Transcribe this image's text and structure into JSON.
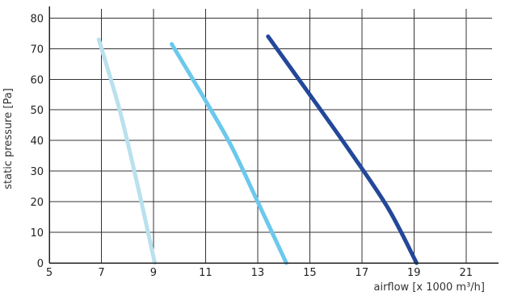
{
  "chart_data": {
    "type": "line",
    "title": "",
    "xlabel": "airflow [x 1000 m³/h]",
    "ylabel": "static pressure [Pa]",
    "xlim": [
      5,
      22
    ],
    "ylim": [
      0,
      83
    ],
    "xticks": [
      5,
      7,
      9,
      11,
      13,
      15,
      17,
      19,
      21
    ],
    "yticks": [
      0,
      10,
      20,
      30,
      40,
      50,
      60,
      70,
      80
    ],
    "grid": true,
    "legend": "none",
    "series": [
      {
        "color": "#b9e1ee",
        "x": [
          6.9,
          7.7,
          8.4,
          9.05
        ],
        "y": [
          73,
          50,
          25,
          0
        ]
      },
      {
        "color": "#6cc8ec",
        "x": [
          9.7,
          11.0,
          12.0,
          13.0,
          14.1
        ],
        "y": [
          71.5,
          53,
          38,
          20,
          0
        ]
      },
      {
        "color": "#23489a",
        "x": [
          13.4,
          15.0,
          16.5,
          18.0,
          19.1
        ],
        "y": [
          74,
          55,
          37,
          18,
          0
        ]
      }
    ]
  }
}
